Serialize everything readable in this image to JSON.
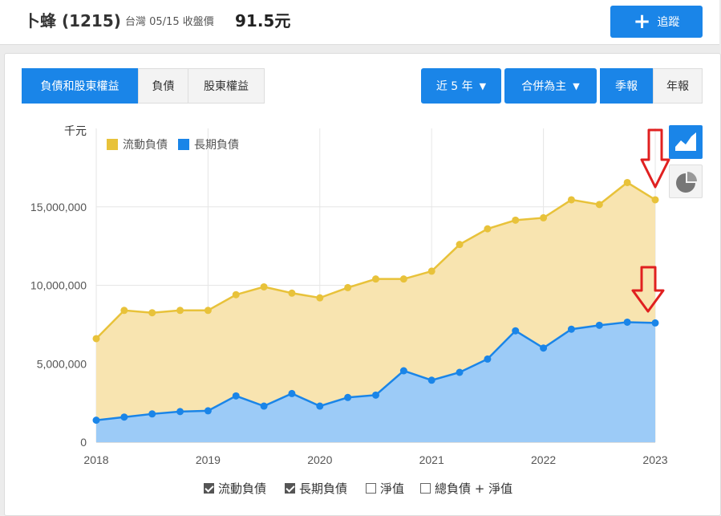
{
  "header": {
    "stock_name": "卜蜂 (1215)",
    "market_date": "台灣 05/15 收盤價",
    "price": "91.5元",
    "follow_label": "追蹤"
  },
  "tabs": {
    "main": [
      "負債和股東權益",
      "負債",
      "股東權益"
    ],
    "active_main": "負債和股東權益",
    "period": "近 5 年",
    "consolidation": "合併為主",
    "frequency": [
      "季報",
      "年報"
    ],
    "active_frequency": "季報"
  },
  "chart_buttons": {
    "area": "area-chart-icon",
    "pie": "pie-chart-icon"
  },
  "bottom_legend": [
    {
      "label": "流動負債",
      "checked": true
    },
    {
      "label": "長期負債",
      "checked": true
    },
    {
      "label": "淨值",
      "checked": false
    },
    {
      "label": "總負債 + 淨值",
      "checked": false
    }
  ],
  "colors": {
    "accent": "#1a85e8",
    "current_liab": "#e8c23a",
    "current_fill": "#f8e4b0",
    "longterm_liab": "#1a85e8",
    "longterm_fill": "#9ccbf7",
    "arrow": "#e02020"
  },
  "chart_data": {
    "type": "area",
    "stacked": true,
    "unit_label": "千元",
    "x_tick_labels": [
      "2018",
      "2019",
      "2020",
      "2021",
      "2022",
      "2023"
    ],
    "y_tick_labels": [
      "0",
      "5,000,000",
      "10,000,000",
      "15,000,000"
    ],
    "ylim": [
      0,
      20000000
    ],
    "xlim": [
      2018.0,
      2023.0
    ],
    "grid": true,
    "legend_position": "top-left",
    "x": [
      2018.0,
      2018.25,
      2018.5,
      2018.75,
      2019.0,
      2019.25,
      2019.5,
      2019.75,
      2020.0,
      2020.25,
      2020.5,
      2020.75,
      2021.0,
      2021.25,
      2021.5,
      2021.75,
      2022.0,
      2022.25,
      2022.5,
      2022.75,
      2023.0
    ],
    "series": [
      {
        "name": "流動負債",
        "values": [
          5200000,
          6800000,
          6450000,
          6450000,
          6400000,
          6450000,
          7600000,
          6400000,
          6900000,
          7000000,
          7400000,
          5850000,
          6950000,
          8150000,
          8300000,
          7050000,
          8300000,
          8250000,
          7700000,
          8900000,
          7850000
        ]
      },
      {
        "name": "長期負債",
        "values": [
          1400000,
          1600000,
          1800000,
          1950000,
          2000000,
          2950000,
          2300000,
          3100000,
          2300000,
          2850000,
          3000000,
          4550000,
          3950000,
          4450000,
          5300000,
          7100000,
          6000000,
          7200000,
          7450000,
          7650000,
          7600000
        ]
      }
    ],
    "annotations": [
      "red-down-arrow",
      "red-down-arrow"
    ]
  }
}
